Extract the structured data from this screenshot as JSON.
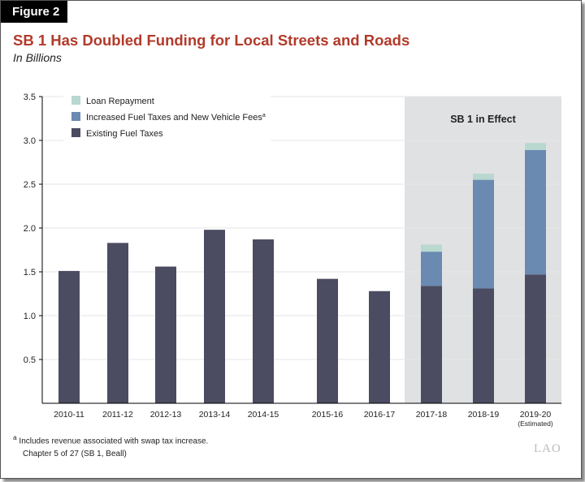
{
  "figure_label": "Figure 2",
  "footnote": "Includes revenue associated with swap tax increase.",
  "footnote_marker": "a",
  "source": "Chapter 5 of 27 (SB 1, Beall)",
  "logo": "LAO",
  "chart_data": {
    "type": "bar",
    "stacked": true,
    "title": "SB 1 Has Doubled Funding for Local Streets and Roads",
    "subtitle": "In Billions",
    "categories": [
      "2010-11",
      "2011-12",
      "2012-13",
      "2013-14",
      "2014-15",
      "2015-16",
      "2016-17",
      "2017-18",
      "2018-19",
      "2019-20"
    ],
    "category_notes": {
      "2019-20": "(Estimated)"
    },
    "series": [
      {
        "name": "Existing Fuel Taxes",
        "color": "#4b4c61",
        "values": [
          1.51,
          1.83,
          1.56,
          1.98,
          1.87,
          1.42,
          1.28,
          1.34,
          1.31,
          1.47
        ]
      },
      {
        "name": "Increased Fuel Taxes and New Vehicle Fees",
        "superscript": "a",
        "color": "#6a8ab2",
        "values": [
          0,
          0,
          0,
          0,
          0,
          0,
          0,
          0.39,
          1.24,
          1.42
        ]
      },
      {
        "name": "Loan Repayment",
        "color": "#b8d8d0",
        "values": [
          0,
          0,
          0,
          0,
          0,
          0,
          0,
          0.08,
          0.07,
          0.08
        ]
      }
    ],
    "ylim": [
      0,
      3.5
    ],
    "yticks": [
      0.5,
      1.0,
      1.5,
      2.0,
      2.5,
      3.0,
      3.5
    ],
    "grid": true,
    "legend": "top-left",
    "annotation": {
      "text": "SB 1 in Effect",
      "shaded_categories": [
        "2017-18",
        "2018-19",
        "2019-20"
      ],
      "color": "#e0e1e3"
    }
  }
}
